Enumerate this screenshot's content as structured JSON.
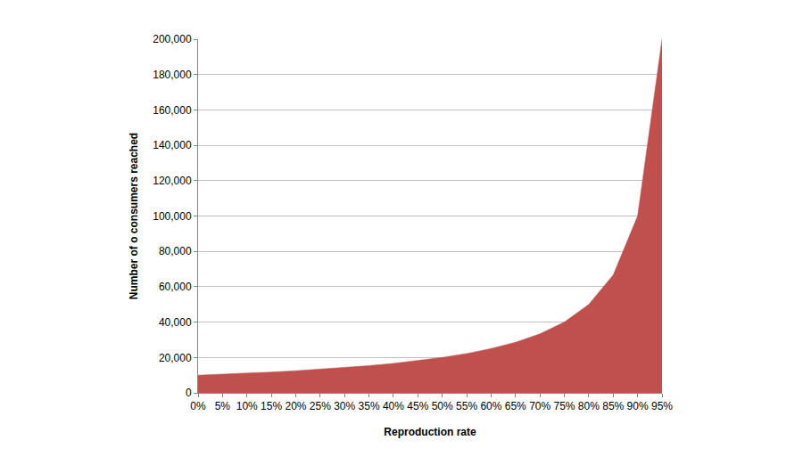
{
  "chart_data": {
    "type": "area",
    "x_label": "Reproduction rate",
    "y_label": "Number of o consumers reached",
    "categories": [
      "0%",
      "5%",
      "10%",
      "15%",
      "20%",
      "25%",
      "30%",
      "35%",
      "40%",
      "45%",
      "50%",
      "55%",
      "60%",
      "65%",
      "70%",
      "75%",
      "80%",
      "85%",
      "90%",
      "95%"
    ],
    "values": [
      10000,
      10526,
      11111,
      11765,
      12500,
      13333,
      14286,
      15385,
      16667,
      18182,
      20000,
      22222,
      25000,
      28571,
      33333,
      40000,
      50000,
      66667,
      100000,
      200000
    ],
    "color": "#c0504d",
    "ylim": [
      0,
      200000
    ],
    "yticks": [
      0,
      {
        "value": 20000,
        "label": "20,000"
      },
      {
        "value": 40000,
        "label": "40,000"
      },
      {
        "value": 60000,
        "label": "60,000"
      },
      {
        "value": 80000,
        "label": "80,000"
      },
      {
        "value": 100000,
        "label": "100,000"
      },
      {
        "value": 120000,
        "label": "120,000"
      },
      {
        "value": 140000,
        "label": "140,000"
      },
      {
        "value": 160000,
        "label": "160,000"
      },
      {
        "value": 180000,
        "label": "180,000"
      },
      {
        "value": 200000,
        "label": "200,000"
      }
    ],
    "grid": true
  }
}
